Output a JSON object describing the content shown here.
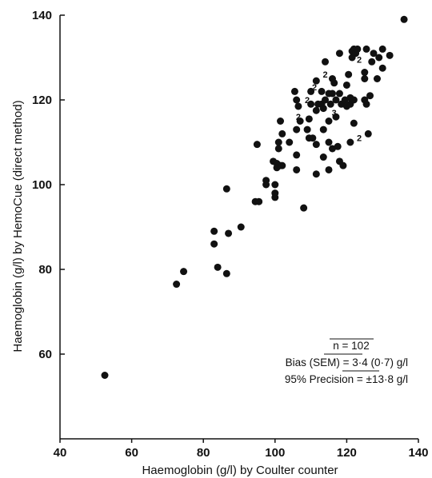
{
  "chart_data": {
    "type": "scatter",
    "xlabel": "Haemoglobin (g/l) by Coulter counter",
    "ylabel": "Haemoglobin (g/l) by HemoCue (direct method)",
    "xlim": [
      40,
      140
    ],
    "ylim": [
      40,
      140
    ],
    "x_ticks": [
      "40",
      "60",
      "80",
      "100",
      "120",
      "140"
    ],
    "y_ticks": [
      "60",
      "80",
      "100",
      "120",
      "140"
    ],
    "grid": false,
    "points": [
      [
        52.5,
        55
      ],
      [
        72.5,
        76.5
      ],
      [
        74.5,
        79.5
      ],
      [
        84,
        80.5
      ],
      [
        86.5,
        79
      ],
      [
        83,
        86
      ],
      [
        83,
        89
      ],
      [
        87,
        88.5
      ],
      [
        90.5,
        90
      ],
      [
        86.5,
        99
      ],
      [
        94.5,
        96
      ],
      [
        95.5,
        96
      ],
      [
        95,
        109.5
      ],
      [
        97.5,
        101
      ],
      [
        97.5,
        100
      ],
      [
        100,
        97
      ],
      [
        100,
        98
      ],
      [
        100,
        100
      ],
      [
        99.5,
        105.5
      ],
      [
        100.5,
        105
      ],
      [
        100.5,
        104
      ],
      [
        101.5,
        104.5
      ],
      [
        102,
        104.5
      ],
      [
        101,
        108.5
      ],
      [
        101,
        110
      ],
      [
        102,
        112
      ],
      [
        101.5,
        115
      ],
      [
        104,
        110
      ],
      [
        106,
        107
      ],
      [
        106,
        103.5
      ],
      [
        106,
        113
      ],
      [
        105.5,
        122
      ],
      [
        106,
        120
      ],
      [
        106.5,
        118.5
      ],
      [
        107,
        115
      ],
      [
        108,
        94.5
      ],
      [
        109,
        113
      ],
      [
        109.5,
        111
      ],
      [
        109.5,
        115.5
      ],
      [
        110,
        119
      ],
      [
        110,
        122
      ],
      [
        110.5,
        111
      ],
      [
        111.5,
        109.5
      ],
      [
        111.5,
        102.5
      ],
      [
        111.5,
        117.5
      ],
      [
        111.5,
        124.5
      ],
      [
        112,
        119
      ],
      [
        113,
        122
      ],
      [
        113,
        119
      ],
      [
        113.5,
        118
      ],
      [
        113.5,
        106.5
      ],
      [
        113.5,
        113
      ],
      [
        114,
        129
      ],
      [
        114,
        120
      ],
      [
        115,
        103.5
      ],
      [
        115,
        110
      ],
      [
        115,
        115
      ],
      [
        115,
        121.5
      ],
      [
        115.5,
        119
      ],
      [
        116,
        108.5
      ],
      [
        116,
        121.5
      ],
      [
        116,
        125
      ],
      [
        116.5,
        124
      ],
      [
        117,
        120
      ],
      [
        117,
        116
      ],
      [
        117.5,
        109
      ],
      [
        118,
        131
      ],
      [
        118,
        121.5
      ],
      [
        118,
        105.5
      ],
      [
        118.5,
        119
      ],
      [
        119,
        104.5
      ],
      [
        119.5,
        120
      ],
      [
        120,
        118.5
      ],
      [
        120,
        123.5
      ],
      [
        120.5,
        126
      ],
      [
        121,
        119
      ],
      [
        121,
        120.5
      ],
      [
        121,
        110
      ],
      [
        121.5,
        130
      ],
      [
        121.5,
        131.5
      ],
      [
        122,
        114.5
      ],
      [
        122,
        120
      ],
      [
        122,
        132
      ],
      [
        122.5,
        131
      ],
      [
        123,
        132
      ],
      [
        125,
        126.5
      ],
      [
        125,
        125
      ],
      [
        125,
        120
      ],
      [
        125.5,
        119
      ],
      [
        125.5,
        132
      ],
      [
        126,
        112
      ],
      [
        126.5,
        121
      ],
      [
        127,
        129
      ],
      [
        127.5,
        131
      ],
      [
        128.5,
        125
      ],
      [
        129,
        130
      ],
      [
        130,
        127.5
      ],
      [
        130,
        132
      ],
      [
        132,
        130.5
      ],
      [
        136,
        139
      ]
    ],
    "multiplicity_labels": [
      {
        "x": 114,
        "y": 126,
        "text": "2"
      },
      {
        "x": 111,
        "y": 123,
        "text": "2"
      },
      {
        "x": 109,
        "y": 120,
        "text": "2"
      },
      {
        "x": 106.5,
        "y": 116,
        "text": "2"
      },
      {
        "x": 116.5,
        "y": 117,
        "text": "3"
      },
      {
        "x": 123.5,
        "y": 129.5,
        "text": "2"
      },
      {
        "x": 123.5,
        "y": 111,
        "text": "2"
      }
    ],
    "annotations": {
      "n": "n = 102",
      "bias": "Bias (SEM) = 3·4 (0·7) g/l",
      "precision": "95% Precision = ±13·8 g/l"
    }
  }
}
